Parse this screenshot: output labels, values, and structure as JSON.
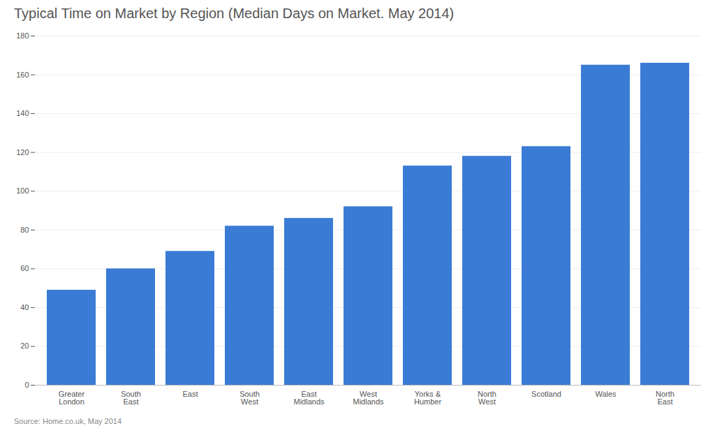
{
  "chart_data": {
    "type": "bar",
    "title": "Typical Time on Market by Region (Median Days on Market. May 2014)",
    "source": "Source: Home.co.uk, May 2014",
    "categories": [
      "Greater\nLondon",
      "South\nEast",
      "East",
      "South\nWest",
      "East\nMidlands",
      "West\nMidlands",
      "Yorks &\nHumber",
      "North\nWest",
      "Scotland",
      "Wales",
      "North\nEast"
    ],
    "values": [
      49,
      60,
      69,
      82,
      86,
      92,
      113,
      118,
      123,
      165,
      166
    ],
    "color": "#3a7bd5",
    "ylim": [
      0,
      180
    ],
    "yticks": [
      0,
      20,
      40,
      60,
      80,
      100,
      120,
      140,
      160,
      180
    ],
    "grid": true
  }
}
